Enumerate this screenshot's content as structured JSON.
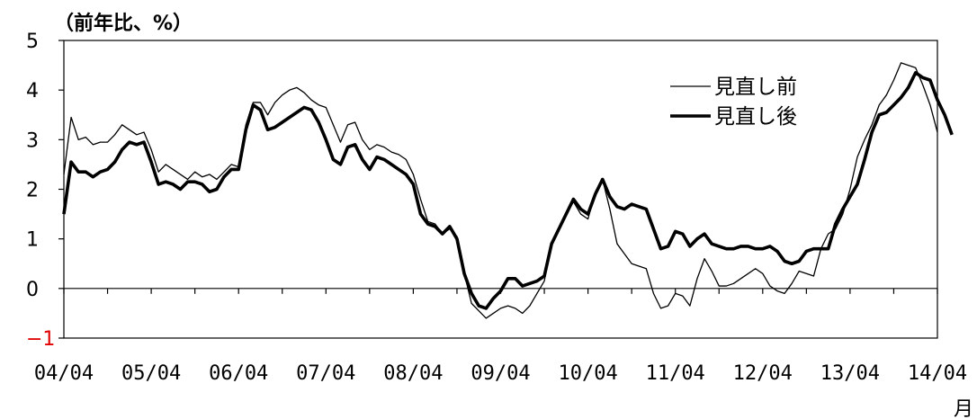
{
  "chart_data": {
    "type": "line",
    "title": "（前年比、%）",
    "xunit": "月",
    "ylim": [
      -1,
      5
    ],
    "yticks": [
      {
        "value": 5,
        "label": "5"
      },
      {
        "value": 4,
        "label": "4"
      },
      {
        "value": 3,
        "label": "3"
      },
      {
        "value": 2,
        "label": "2"
      },
      {
        "value": 1,
        "label": "1"
      },
      {
        "value": 0,
        "label": "0"
      },
      {
        "value": -1,
        "label": "−1"
      }
    ],
    "xticks": [
      "04/04",
      "05/04",
      "06/04",
      "07/04",
      "08/04",
      "09/04",
      "10/04",
      "11/04",
      "12/04",
      "13/04",
      "14/04"
    ],
    "legend_position": "top-right",
    "series": [
      {
        "name": "見直し前",
        "color": "#000000",
        "style": "thin",
        "values": [
          2.3,
          3.45,
          3.0,
          3.05,
          2.9,
          2.95,
          2.95,
          3.1,
          3.3,
          3.2,
          3.1,
          3.15,
          2.8,
          2.35,
          2.5,
          2.4,
          2.3,
          2.2,
          2.35,
          2.25,
          2.3,
          2.2,
          2.35,
          2.5,
          2.45,
          3.3,
          3.75,
          3.75,
          3.5,
          3.75,
          3.9,
          4.0,
          4.05,
          3.95,
          3.8,
          3.7,
          3.65,
          3.3,
          2.95,
          3.3,
          3.35,
          3.0,
          2.8,
          2.9,
          2.85,
          2.75,
          2.7,
          2.6,
          2.3,
          1.8,
          1.35,
          1.3,
          1.1,
          1.2,
          1.05,
          0.3,
          -0.3,
          -0.45,
          -0.6,
          -0.5,
          -0.4,
          -0.35,
          -0.4,
          -0.5,
          -0.35,
          -0.1,
          0.15,
          0.9,
          1.2,
          1.5,
          1.75,
          1.5,
          1.4,
          1.95,
          2.2,
          1.6,
          0.9,
          0.7,
          0.5,
          0.45,
          0.4,
          -0.1,
          -0.4,
          -0.35,
          -0.1,
          -0.15,
          -0.35,
          0.2,
          0.6,
          0.35,
          0.05,
          0.05,
          0.1,
          0.2,
          0.3,
          0.4,
          0.3,
          0.05,
          -0.05,
          -0.1,
          0.1,
          0.35,
          0.3,
          0.25,
          0.8,
          1.1,
          1.2,
          1.5,
          2.0,
          2.65,
          3.0,
          3.3,
          3.7,
          3.9,
          4.2,
          4.55,
          4.5,
          4.45,
          4.1,
          3.7,
          3.15
        ]
      },
      {
        "name": "見直し後",
        "color": "#000000",
        "style": "thick",
        "values": [
          1.5,
          2.55,
          2.35,
          2.35,
          2.25,
          2.35,
          2.4,
          2.55,
          2.8,
          2.95,
          2.9,
          2.95,
          2.55,
          2.1,
          2.15,
          2.1,
          2.0,
          2.15,
          2.15,
          2.1,
          1.95,
          2.0,
          2.25,
          2.4,
          2.4,
          3.2,
          3.7,
          3.6,
          3.2,
          3.25,
          3.35,
          3.45,
          3.55,
          3.65,
          3.6,
          3.35,
          3.0,
          2.6,
          2.5,
          2.85,
          2.9,
          2.6,
          2.4,
          2.65,
          2.6,
          2.5,
          2.4,
          2.3,
          2.1,
          1.5,
          1.3,
          1.25,
          1.1,
          1.25,
          1.0,
          0.3,
          -0.1,
          -0.35,
          -0.4,
          -0.2,
          -0.05,
          0.2,
          0.2,
          0.05,
          0.1,
          0.15,
          0.25,
          0.9,
          1.2,
          1.5,
          1.8,
          1.6,
          1.5,
          1.9,
          2.2,
          1.85,
          1.65,
          1.6,
          1.7,
          1.65,
          1.6,
          1.2,
          0.8,
          0.85,
          1.15,
          1.1,
          0.85,
          1.0,
          1.1,
          0.9,
          0.85,
          0.8,
          0.8,
          0.85,
          0.85,
          0.8,
          0.8,
          0.85,
          0.75,
          0.55,
          0.5,
          0.55,
          0.75,
          0.8,
          0.8,
          0.8,
          1.3,
          1.6,
          1.85,
          2.1,
          2.6,
          3.15,
          3.5,
          3.55,
          3.7,
          3.85,
          4.05,
          4.35,
          4.25,
          4.2,
          3.8,
          3.5,
          3.1
        ]
      }
    ]
  }
}
